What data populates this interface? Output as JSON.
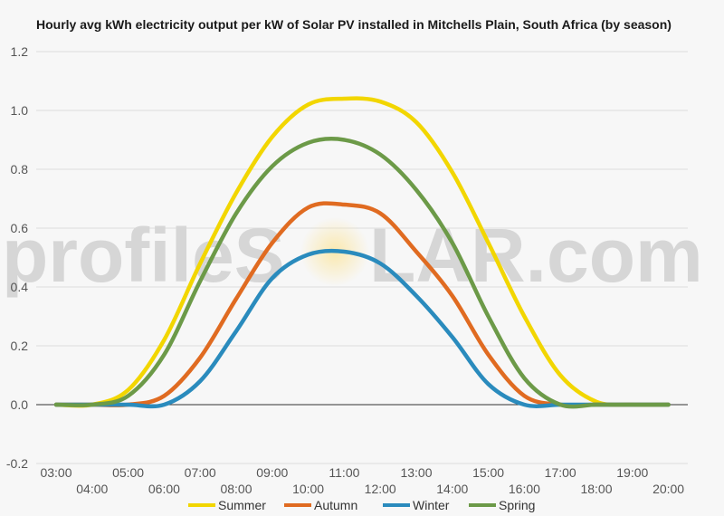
{
  "chart_data": {
    "type": "line",
    "title": "Hourly avg kWh electricity output per kW of Solar PV installed in Mitchells Plain, South Africa (by season)",
    "xlabel": "",
    "ylabel": "",
    "ylim": [
      -0.2,
      1.2
    ],
    "yticks": [
      "1.2",
      "1.0",
      "0.8",
      "0.6",
      "0.4",
      "0.2",
      "0.0",
      "-0.2"
    ],
    "ytick_values": [
      1.2,
      1.0,
      0.8,
      0.6,
      0.4,
      0.2,
      0.0,
      -0.2
    ],
    "x": [
      "03:00",
      "04:00",
      "05:00",
      "06:00",
      "07:00",
      "08:00",
      "09:00",
      "10:00",
      "11:00",
      "12:00",
      "13:00",
      "14:00",
      "15:00",
      "16:00",
      "17:00",
      "18:00",
      "19:00",
      "20:00"
    ],
    "series": [
      {
        "name": "Summer",
        "color": "#f2d600",
        "values": [
          0.0,
          0.0,
          0.05,
          0.22,
          0.48,
          0.72,
          0.91,
          1.02,
          1.04,
          1.03,
          0.96,
          0.79,
          0.55,
          0.3,
          0.1,
          0.01,
          0.0,
          0.0
        ]
      },
      {
        "name": "Autumn",
        "color": "#e06b21",
        "values": [
          0.0,
          0.0,
          0.0,
          0.03,
          0.16,
          0.36,
          0.55,
          0.67,
          0.68,
          0.65,
          0.52,
          0.37,
          0.17,
          0.03,
          0.0,
          0.0,
          0.0,
          0.0
        ]
      },
      {
        "name": "Winter",
        "color": "#2a8bbd",
        "values": [
          0.0,
          0.0,
          0.0,
          0.0,
          0.08,
          0.25,
          0.43,
          0.51,
          0.52,
          0.48,
          0.37,
          0.23,
          0.07,
          0.0,
          0.0,
          0.0,
          0.0,
          0.0
        ]
      },
      {
        "name": "Spring",
        "color": "#6c9a48",
        "values": [
          0.0,
          0.0,
          0.03,
          0.17,
          0.42,
          0.65,
          0.81,
          0.89,
          0.9,
          0.85,
          0.73,
          0.55,
          0.3,
          0.09,
          0.0,
          0.0,
          0.0,
          0.0
        ]
      }
    ],
    "grid": true,
    "legend_position": "bottom"
  },
  "watermark": {
    "left": "profileS",
    "right": "LAR.com"
  }
}
